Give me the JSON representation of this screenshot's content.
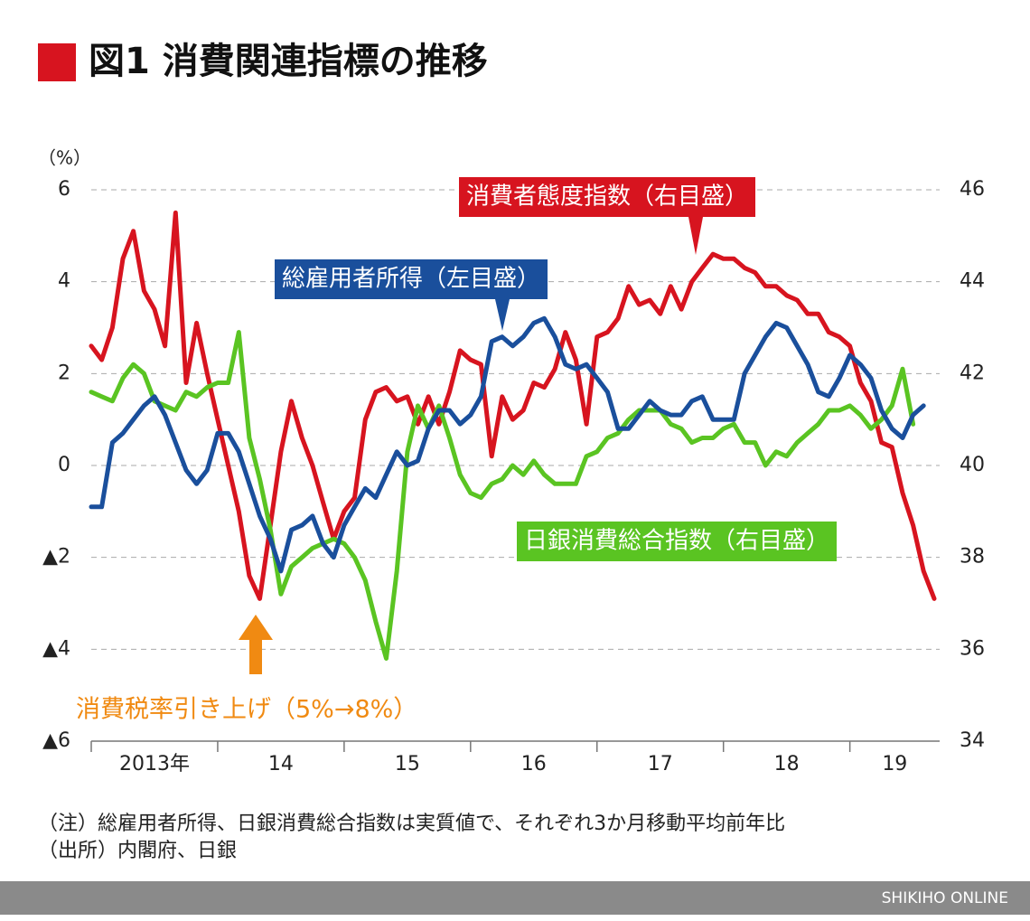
{
  "chart_data": {
    "type": "line",
    "title": "図1 消費関連指標の推移",
    "y_label": "（%）",
    "x": [
      2013,
      2013.083,
      2013.167,
      2013.25,
      2013.333,
      2013.417,
      2013.5,
      2013.583,
      2013.667,
      2013.75,
      2013.833,
      2013.917,
      2014,
      2014.083,
      2014.167,
      2014.25,
      2014.333,
      2014.417,
      2014.5,
      2014.583,
      2014.667,
      2014.75,
      2014.833,
      2014.917,
      2015,
      2015.083,
      2015.167,
      2015.25,
      2015.333,
      2015.417,
      2015.5,
      2015.583,
      2015.667,
      2015.75,
      2015.833,
      2015.917,
      2016,
      2016.083,
      2016.167,
      2016.25,
      2016.333,
      2016.417,
      2016.5,
      2016.583,
      2016.667,
      2016.75,
      2016.833,
      2016.917,
      2017,
      2017.083,
      2017.167,
      2017.25,
      2017.333,
      2017.417,
      2017.5,
      2017.583,
      2017.667,
      2017.75,
      2017.833,
      2017.917,
      2018,
      2018.083,
      2018.167,
      2018.25,
      2018.333,
      2018.417,
      2018.5,
      2018.583,
      2018.667,
      2018.75,
      2018.833,
      2018.917,
      2019,
      2019.083,
      2019.167,
      2019.25,
      2019.333,
      2019.417,
      2019.5,
      2019.583,
      2019.667
    ],
    "xlim": [
      2013,
      2019.71
    ],
    "xticks": [
      {
        "value": 2013,
        "label": "2013年"
      },
      {
        "value": 2014,
        "label": "14"
      },
      {
        "value": 2015,
        "label": "15"
      },
      {
        "value": 2016,
        "label": "16"
      },
      {
        "value": 2017,
        "label": "17"
      },
      {
        "value": 2018,
        "label": "18"
      },
      {
        "value": 2019,
        "label": "19"
      }
    ],
    "ylim": [
      -6,
      6
    ],
    "yticks": [
      {
        "value": -6,
        "label": "▲6"
      },
      {
        "value": -4,
        "label": "▲4"
      },
      {
        "value": -2,
        "label": "▲2"
      },
      0,
      2,
      4,
      6
    ],
    "y2lim": [
      34,
      46
    ],
    "y2ticks": [
      34,
      36,
      38,
      40,
      42,
      44,
      46
    ],
    "grid": true,
    "series": [
      {
        "name": "消費者態度指数（右目盛）",
        "color": "#d7141f",
        "axis": "y2",
        "values": [
          42.6,
          42.3,
          43.0,
          44.5,
          45.1,
          43.8,
          43.4,
          42.6,
          45.5,
          41.8,
          43.1,
          42.0,
          41.0,
          40.0,
          39.0,
          37.6,
          37.1,
          38.7,
          40.3,
          41.4,
          40.6,
          40.0,
          39.2,
          38.4,
          39.0,
          39.3,
          41.0,
          41.6,
          41.7,
          41.4,
          41.5,
          40.9,
          41.5,
          40.9,
          41.6,
          42.5,
          42.3,
          42.2,
          40.2,
          41.5,
          41.0,
          41.2,
          41.8,
          41.7,
          42.1,
          42.9,
          42.3,
          40.9,
          42.8,
          42.9,
          43.2,
          43.9,
          43.5,
          43.6,
          43.3,
          43.9,
          43.4,
          44.0,
          44.3,
          44.6,
          44.5,
          44.5,
          44.3,
          44.2,
          43.9,
          43.9,
          43.7,
          43.6,
          43.3,
          43.3,
          42.9,
          42.8,
          42.6,
          41.8,
          41.4,
          40.5,
          40.4,
          39.4,
          38.7,
          37.7,
          37.1
        ]
      },
      {
        "name": "日銀消費総合指数（右目盛）",
        "color": "#5ac422",
        "axis": "y2",
        "values": [
          41.6,
          41.5,
          41.4,
          41.9,
          42.2,
          42.0,
          41.4,
          41.3,
          41.2,
          41.6,
          41.5,
          41.7,
          41.8,
          41.8,
          42.9,
          40.6,
          39.7,
          38.6,
          37.2,
          37.8,
          38.0,
          38.2,
          38.3,
          38.4,
          38.3,
          38.0,
          37.5,
          36.6,
          35.8,
          37.7,
          40.3,
          41.3,
          40.8,
          41.3,
          40.6,
          39.8,
          39.4,
          39.3,
          39.6,
          39.7,
          40.0,
          39.8,
          40.1,
          39.8,
          39.6,
          39.6,
          39.6,
          40.2,
          40.3,
          40.6,
          40.7,
          41.0,
          41.2,
          41.2,
          41.2,
          40.9,
          40.8,
          40.5,
          40.6,
          40.6,
          40.8,
          40.9,
          40.5,
          40.5,
          40.0,
          40.3,
          40.2,
          40.5,
          40.7,
          40.9,
          41.2,
          41.2,
          41.3,
          41.1,
          40.8,
          41.0,
          41.3,
          42.1,
          40.9,
          null,
          null
        ]
      },
      {
        "name": "総雇用者所得（左目盛）",
        "color": "#1a4f9c",
        "values": [
          -0.9,
          -0.9,
          0.5,
          0.7,
          1.0,
          1.3,
          1.5,
          1.1,
          0.5,
          -0.1,
          -0.4,
          -0.1,
          0.7,
          0.7,
          0.3,
          -0.4,
          -1.1,
          -1.6,
          -2.3,
          -1.4,
          -1.3,
          -1.1,
          -1.7,
          -2.0,
          -1.3,
          -0.9,
          -0.5,
          -0.7,
          -0.2,
          0.3,
          0.0,
          0.1,
          0.8,
          1.2,
          1.2,
          0.9,
          1.1,
          1.5,
          2.7,
          2.8,
          2.6,
          2.8,
          3.1,
          3.2,
          2.8,
          2.2,
          2.1,
          2.2,
          1.9,
          1.6,
          0.8,
          0.8,
          1.1,
          1.4,
          1.2,
          1.1,
          1.1,
          1.4,
          1.5,
          1.0,
          1.0,
          1.0,
          2.0,
          2.4,
          2.8,
          3.1,
          3.0,
          2.6,
          2.2,
          1.6,
          1.5,
          1.9,
          2.4,
          2.2,
          1.9,
          1.2,
          0.8,
          0.6,
          1.1,
          1.3,
          null
        ]
      }
    ],
    "annotation": "消費税率引き上げ（5%→8%）",
    "note": "（注）総雇用者所得、日銀消費総合指数は実質値で、それぞれ3か月移動平均前年比",
    "source": "（出所）内閣府、日銀",
    "footer": "SHIKIHO ONLINE"
  }
}
